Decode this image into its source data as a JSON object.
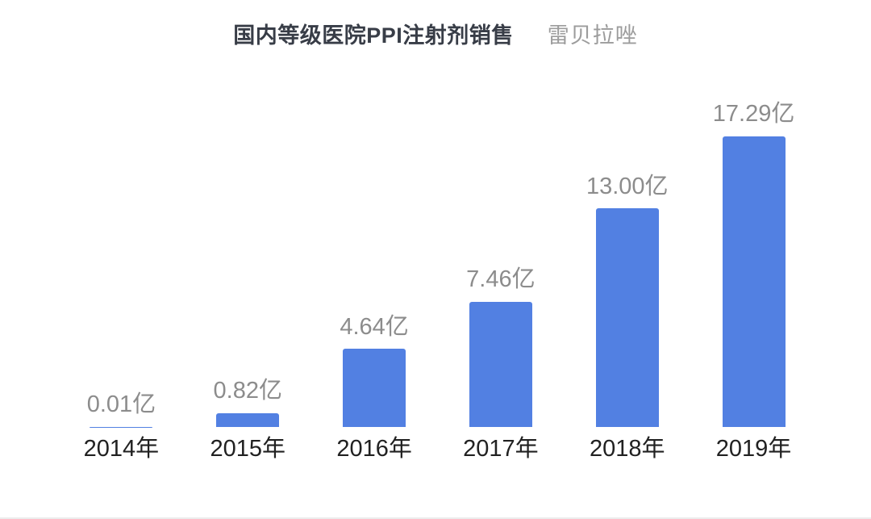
{
  "title": {
    "main": "国内等级医院PPI注射剂销售",
    "sub": "雷贝拉唑"
  },
  "chart_data": {
    "type": "bar",
    "title": "国内等级医院PPI注射剂销售",
    "subtitle": "雷贝拉唑",
    "categories": [
      "2014年",
      "2015年",
      "2016年",
      "2017年",
      "2018年",
      "2019年"
    ],
    "values": [
      0.01,
      0.82,
      4.64,
      7.46,
      13.0,
      17.29
    ],
    "value_labels": [
      "0.01亿",
      "0.82亿",
      "4.64亿",
      "7.46亿",
      "13.00亿",
      "17.29亿"
    ],
    "unit": "亿",
    "xlabel": "",
    "ylabel": "",
    "ylim": [
      0,
      18
    ],
    "grid": false,
    "legend": false,
    "axes_visible": false,
    "bar_color": "#5280e2",
    "value_label_color": "#8c8c8c",
    "axis_label_color": "#212121"
  }
}
